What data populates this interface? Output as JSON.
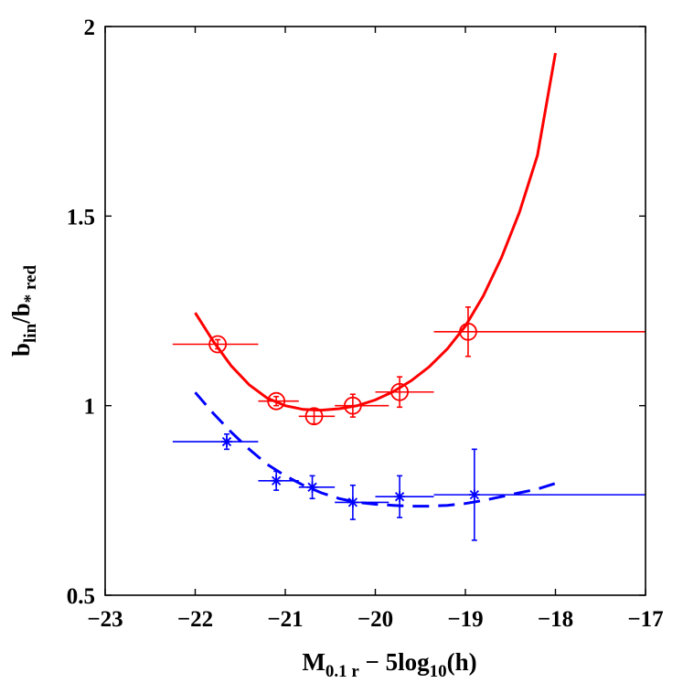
{
  "chart_data": {
    "type": "scatter",
    "title": "",
    "xlim": [
      -23,
      -17
    ],
    "ylim": [
      0.5,
      2
    ],
    "grid": false,
    "legend": "none",
    "xticks": [
      {
        "value": -23,
        "label": "−23"
      },
      {
        "value": -22,
        "label": "−22"
      },
      {
        "value": -21,
        "label": "−21"
      },
      {
        "value": -20,
        "label": "−20"
      },
      {
        "value": -19,
        "label": "−19"
      },
      {
        "value": -18,
        "label": "−18"
      },
      {
        "value": -17,
        "label": "−17"
      }
    ],
    "yticks": [
      {
        "value": 0.5,
        "label": "0.5"
      },
      {
        "value": 1,
        "label": "1"
      },
      {
        "value": 1.5,
        "label": "1.5"
      },
      {
        "value": 2,
        "label": "2"
      }
    ],
    "xlabel": {
      "main": "M",
      "sub": "0.1 r",
      "rest1": " − 5log",
      "sub2": "10",
      "rest2": "(h)"
    },
    "ylabel": {
      "main1": "b",
      "sub1": "lin",
      "main2": "/b",
      "sub2": "* red"
    },
    "series": [
      {
        "color": "#ff0000",
        "marker": "circle",
        "points": [
          {
            "x": -21.75,
            "y": 1.162,
            "xlo": -22.25,
            "xhi": -21.3,
            "yerr": 0.012
          },
          {
            "x": -21.1,
            "y": 1.012,
            "xlo": -21.3,
            "xhi": -20.85,
            "yerr": 0.012
          },
          {
            "x": -20.68,
            "y": 0.972,
            "xlo": -20.85,
            "xhi": -20.45,
            "yerr": 0.02
          },
          {
            "x": -20.25,
            "y": 1.0,
            "xlo": -20.45,
            "xhi": -19.85,
            "yerr": 0.03
          },
          {
            "x": -19.73,
            "y": 1.036,
            "xlo": -20.0,
            "xhi": -19.35,
            "yerr": 0.04
          },
          {
            "x": -18.97,
            "y": 1.195,
            "xlo": -19.35,
            "xhi": -17.0,
            "yerr": 0.065
          }
        ],
        "fit_line": {
          "style": "solid",
          "x": [
            -22.0,
            -21.8,
            -21.6,
            -21.4,
            -21.2,
            -21.0,
            -20.8,
            -20.6,
            -20.4,
            -20.2,
            -20.0,
            -19.8,
            -19.6,
            -19.4,
            -19.2,
            -19.0,
            -18.8,
            -18.6,
            -18.4,
            -18.2,
            -18.0
          ],
          "y": [
            1.245,
            1.17,
            1.105,
            1.055,
            1.02,
            1.0,
            0.99,
            0.988,
            0.992,
            1.0,
            1.015,
            1.037,
            1.066,
            1.103,
            1.15,
            1.21,
            1.29,
            1.39,
            1.51,
            1.66,
            1.93
          ]
        }
      },
      {
        "color": "#0000ff",
        "marker": "star",
        "points": [
          {
            "x": -21.65,
            "y": 0.905,
            "xlo": -22.25,
            "xhi": -21.3,
            "yerr": 0.02
          },
          {
            "x": -21.1,
            "y": 0.802,
            "xlo": -21.3,
            "xhi": -20.85,
            "yerr": 0.025
          },
          {
            "x": -20.7,
            "y": 0.785,
            "xlo": -20.85,
            "xhi": -20.45,
            "yerr": 0.03
          },
          {
            "x": -20.25,
            "y": 0.745,
            "xlo": -20.45,
            "xhi": -19.85,
            "yerr": 0.045
          },
          {
            "x": -19.73,
            "y": 0.76,
            "xlo": -20.0,
            "xhi": -19.35,
            "yerr": 0.055
          },
          {
            "x": -18.9,
            "y": 0.765,
            "xlo": -19.35,
            "xhi": -17.0,
            "yerr": 0.12
          }
        ],
        "fit_line": {
          "style": "dashed",
          "x": [
            -22.0,
            -21.8,
            -21.6,
            -21.4,
            -21.2,
            -21.0,
            -20.8,
            -20.6,
            -20.4,
            -20.2,
            -20.0,
            -19.8,
            -19.6,
            -19.4,
            -19.2,
            -19.0,
            -18.8,
            -18.6,
            -18.4,
            -18.2,
            -18.0
          ],
          "y": [
            1.035,
            0.98,
            0.93,
            0.885,
            0.845,
            0.815,
            0.79,
            0.77,
            0.755,
            0.745,
            0.74,
            0.737,
            0.735,
            0.735,
            0.737,
            0.742,
            0.75,
            0.76,
            0.77,
            0.78,
            0.795
          ]
        }
      }
    ]
  }
}
